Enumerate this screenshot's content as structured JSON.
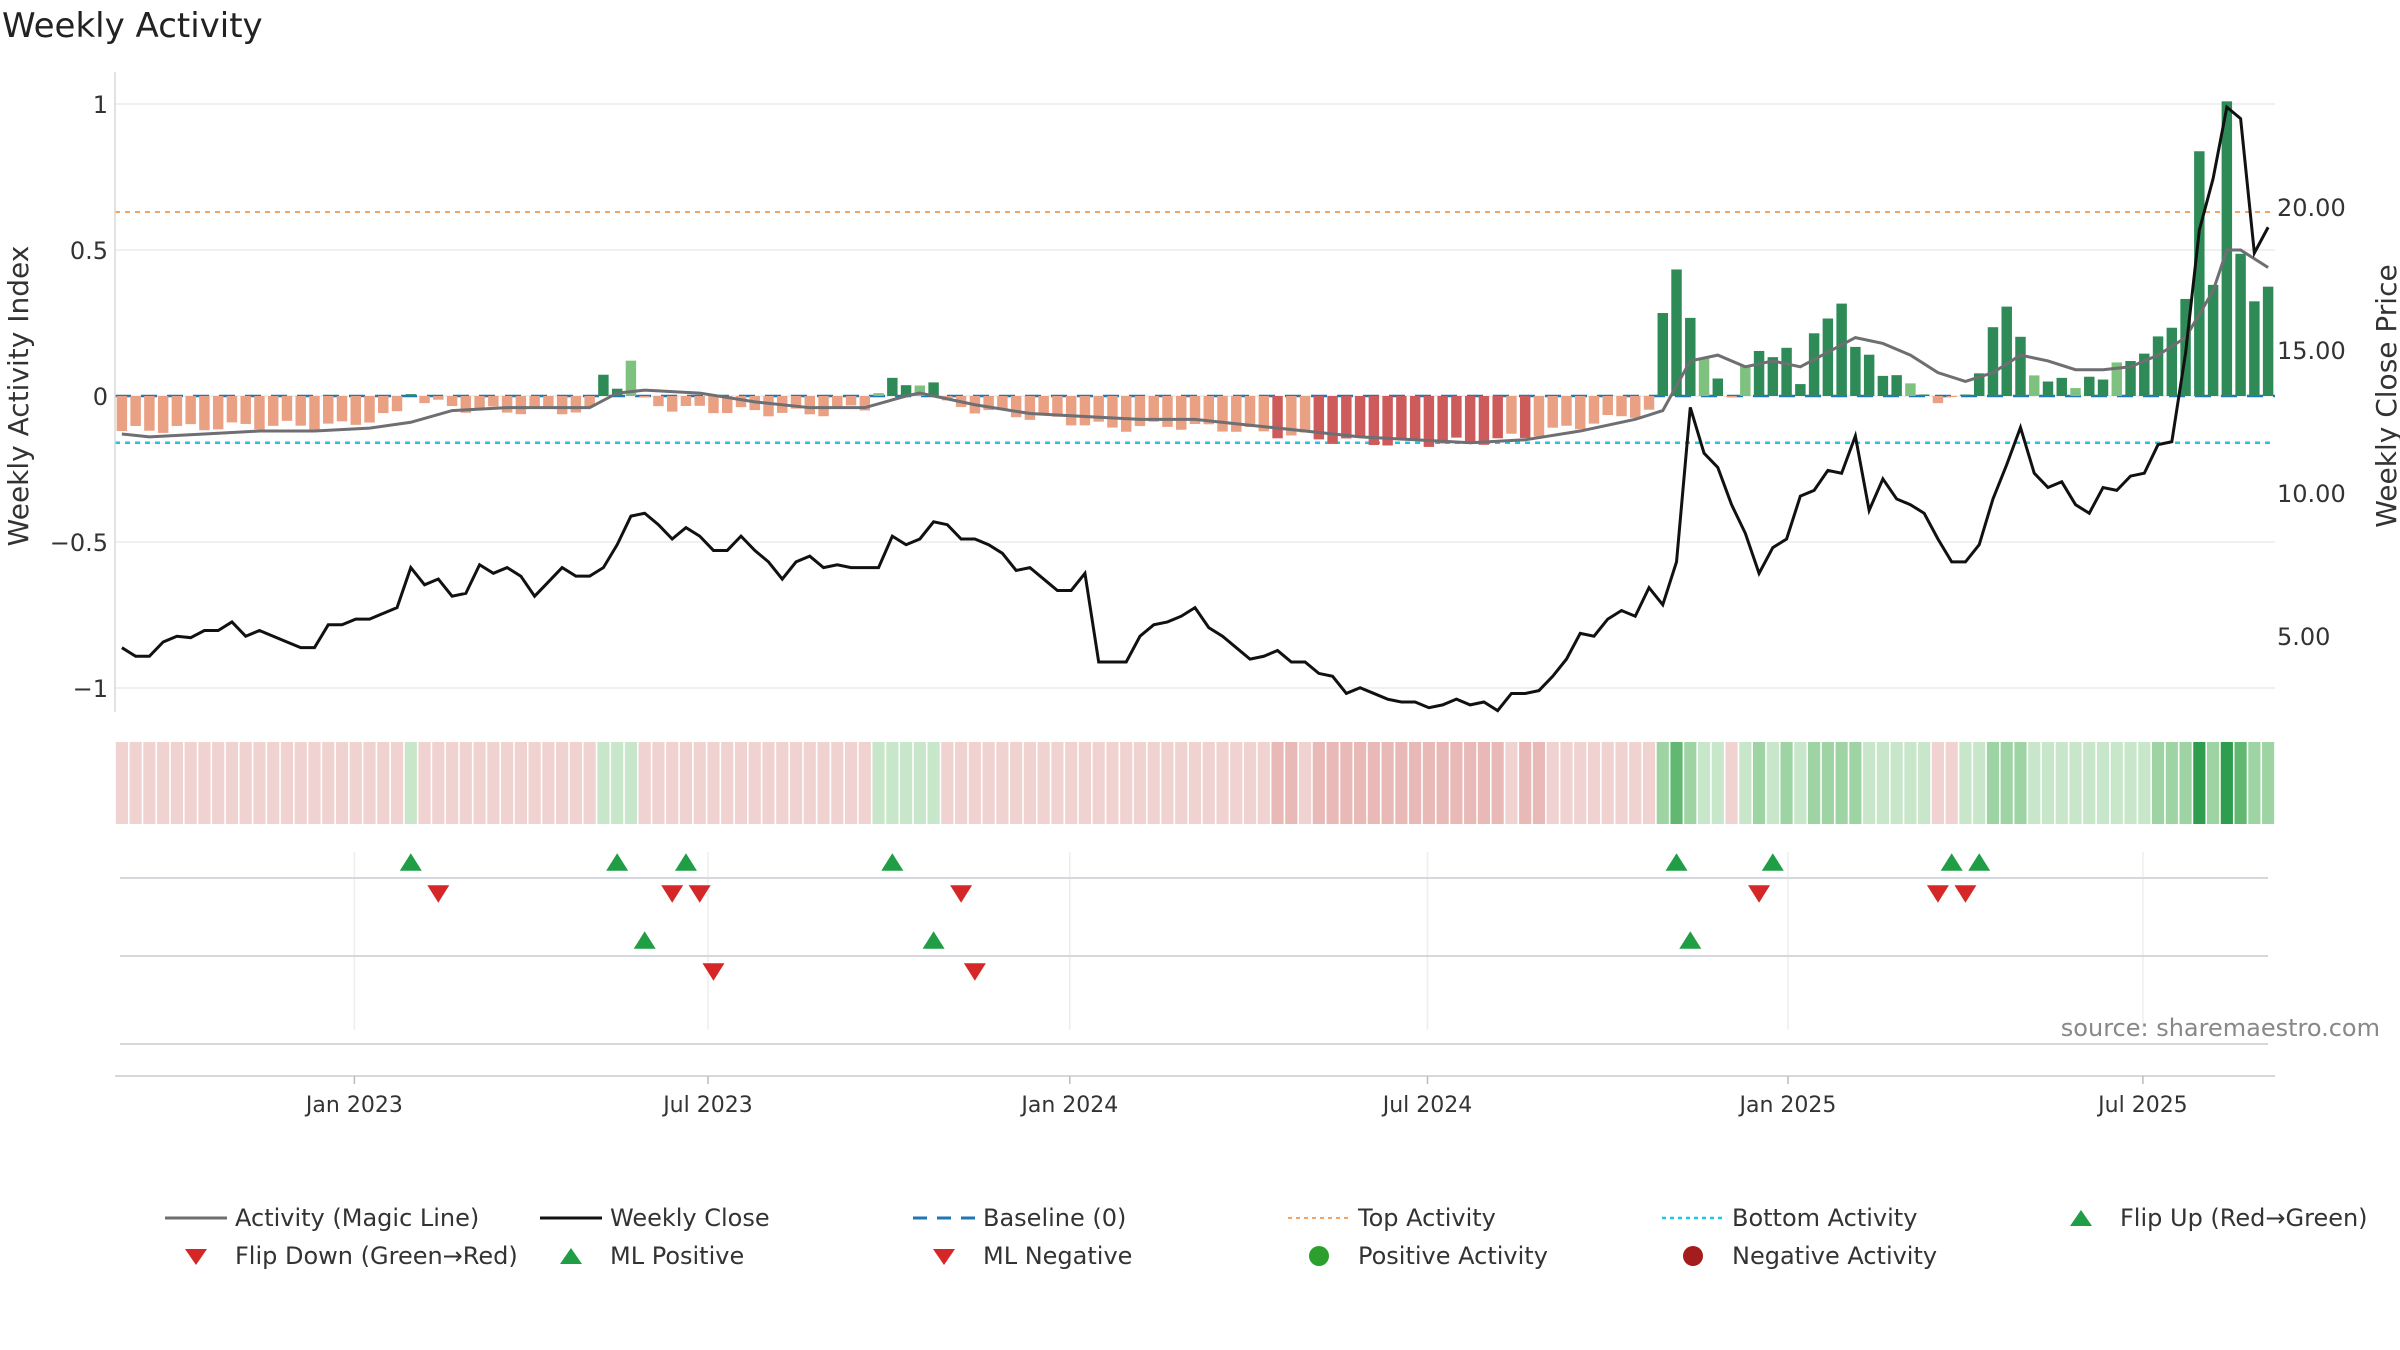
{
  "title": "Weekly Activity",
  "source": "source: sharemaestro.com",
  "colors": {
    "pos_dark": "#2e8b57",
    "pos_light": "#7fc27f",
    "neg_dark": "#cd5b5b",
    "neg_light": "#e9a083",
    "magic": "#6e6e73",
    "close": "#111111",
    "baseline": "#1f77b4",
    "top": "#f4a460",
    "bottom": "#1fc6e0",
    "flip_up": "#1f9e45",
    "flip_down": "#d62728",
    "pos_dot": "#2ca02c",
    "neg_dot": "#a51c1c"
  },
  "chart_data": {
    "type": "bar",
    "title": "Weekly Activity",
    "ylabel": "Weekly Activity Index",
    "y2label": "Weekly Close Price",
    "ylim": [
      -1.1,
      1.05
    ],
    "y2lim": [
      2.0,
      24.8
    ],
    "yticks": [
      {
        "v": 1,
        "label": "1"
      },
      {
        "v": 0.5,
        "label": "0.5"
      },
      {
        "v": 0,
        "label": "0"
      },
      {
        "v": -0.5,
        "label": "−0.5"
      },
      {
        "v": -1,
        "label": "−1"
      }
    ],
    "y2ticks": [
      {
        "v": 20,
        "label": "20.00"
      },
      {
        "v": 15,
        "label": "15.00"
      },
      {
        "v": 10,
        "label": "10.00"
      },
      {
        "v": 5,
        "label": "5.00"
      }
    ],
    "x_start": "2022-09-12",
    "week_count": 153,
    "xticks": [
      {
        "week": 16.9,
        "label": "Jan 2023"
      },
      {
        "week": 42.6,
        "label": "Jul 2023"
      },
      {
        "week": 68.9,
        "label": "Jan 2024"
      },
      {
        "week": 94.9,
        "label": "Jul 2024"
      },
      {
        "week": 121.1,
        "label": "Jan 2025"
      },
      {
        "week": 146.9,
        "label": "Jul 2025"
      }
    ],
    "top_activity": 0.63,
    "bottom_activity": -0.16,
    "segments": [
      {
        "w": 0,
        "v": -0.12
      },
      {
        "w": 4,
        "v": -0.11
      },
      {
        "w": 10,
        "v": -0.1
      },
      {
        "w": 16,
        "v": -0.1
      },
      {
        "w": 20,
        "v": -0.06
      },
      {
        "w": 21,
        "v": 0.02
      },
      {
        "w": 22,
        "v": -0.02
      },
      {
        "w": 26,
        "v": -0.05
      },
      {
        "w": 30,
        "v": -0.05
      },
      {
        "w": 34,
        "v": -0.05
      },
      {
        "w": 35,
        "v": 0.07
      },
      {
        "w": 36,
        "v": 0.04
      },
      {
        "w": 37,
        "v": 0.12
      },
      {
        "w": 38,
        "v": -0.02
      },
      {
        "w": 40,
        "v": -0.04
      },
      {
        "w": 44,
        "v": -0.05
      },
      {
        "w": 50,
        "v": -0.06
      },
      {
        "w": 54,
        "v": -0.04
      },
      {
        "w": 55,
        "v": 0.02
      },
      {
        "w": 56,
        "v": 0.05
      },
      {
        "w": 57,
        "v": 0.03
      },
      {
        "w": 58,
        "v": 0.05
      },
      {
        "w": 60,
        "v": -0.03
      },
      {
        "w": 64,
        "v": -0.06
      },
      {
        "w": 68,
        "v": -0.08
      },
      {
        "w": 72,
        "v": -0.11
      },
      {
        "w": 76,
        "v": -0.1
      },
      {
        "w": 80,
        "v": -0.11
      },
      {
        "w": 84,
        "v": -0.13
      },
      {
        "w": 88,
        "v": -0.15
      },
      {
        "w": 92,
        "v": -0.16
      },
      {
        "w": 96,
        "v": -0.16
      },
      {
        "w": 100,
        "v": -0.15
      },
      {
        "w": 104,
        "v": -0.12
      },
      {
        "w": 108,
        "v": -0.08
      },
      {
        "w": 111,
        "v": -0.05
      },
      {
        "w": 112,
        "v": 0.27
      },
      {
        "w": 113,
        "v": 0.44
      },
      {
        "w": 114,
        "v": 0.28
      },
      {
        "w": 115,
        "v": 0.12
      },
      {
        "w": 116,
        "v": 0.05
      },
      {
        "w": 117,
        "v": 0.01
      },
      {
        "w": 118,
        "v": 0.11
      },
      {
        "w": 119,
        "v": 0.14
      },
      {
        "w": 120,
        "v": 0.13
      },
      {
        "w": 121,
        "v": 0.18
      },
      {
        "w": 122,
        "v": 0.04
      },
      {
        "w": 123,
        "v": 0.2
      },
      {
        "w": 124,
        "v": 0.27
      },
      {
        "w": 125,
        "v": 0.33
      },
      {
        "w": 126,
        "v": 0.16
      },
      {
        "w": 127,
        "v": 0.13
      },
      {
        "w": 128,
        "v": 0.08
      },
      {
        "w": 129,
        "v": 0.08
      },
      {
        "w": 130,
        "v": 0.03
      },
      {
        "w": 131,
        "v": 0.0
      },
      {
        "w": 132,
        "v": -0.01
      },
      {
        "w": 133,
        "v": 0.0
      },
      {
        "w": 134,
        "v": -0.01
      },
      {
        "w": 135,
        "v": 0.08
      },
      {
        "w": 136,
        "v": 0.25
      },
      {
        "w": 137,
        "v": 0.3
      },
      {
        "w": 138,
        "v": 0.19
      },
      {
        "w": 139,
        "v": 0.08
      },
      {
        "w": 140,
        "v": 0.06
      },
      {
        "w": 141,
        "v": 0.05
      },
      {
        "w": 142,
        "v": 0.02
      },
      {
        "w": 143,
        "v": 0.08
      },
      {
        "w": 144,
        "v": 0.06
      },
      {
        "w": 145,
        "v": 0.1
      },
      {
        "w": 146,
        "v": 0.12
      },
      {
        "w": 147,
        "v": 0.16
      },
      {
        "w": 148,
        "v": 0.2
      },
      {
        "w": 149,
        "v": 0.22
      },
      {
        "w": 150,
        "v": 0.34
      },
      {
        "w": 151,
        "v": 0.85
      },
      {
        "w": 152,
        "v": 0.37
      },
      {
        "w": 153,
        "v": 1.0
      },
      {
        "w": 154,
        "v": 0.5
      },
      {
        "w": 155,
        "v": 0.33
      },
      {
        "w": 156,
        "v": 0.36
      }
    ],
    "magic_line": [
      [
        0,
        -0.13
      ],
      [
        2,
        -0.14
      ],
      [
        6,
        -0.13
      ],
      [
        10,
        -0.12
      ],
      [
        14,
        -0.12
      ],
      [
        18,
        -0.11
      ],
      [
        21,
        -0.09
      ],
      [
        24,
        -0.05
      ],
      [
        28,
        -0.04
      ],
      [
        34,
        -0.04
      ],
      [
        36,
        0.01
      ],
      [
        38,
        0.02
      ],
      [
        42,
        0.01
      ],
      [
        46,
        -0.02
      ],
      [
        50,
        -0.04
      ],
      [
        54,
        -0.04
      ],
      [
        57,
        0.0
      ],
      [
        58,
        0.01
      ],
      [
        62,
        -0.03
      ],
      [
        66,
        -0.06
      ],
      [
        70,
        -0.07
      ],
      [
        74,
        -0.08
      ],
      [
        78,
        -0.08
      ],
      [
        82,
        -0.1
      ],
      [
        86,
        -0.12
      ],
      [
        90,
        -0.14
      ],
      [
        94,
        -0.15
      ],
      [
        98,
        -0.16
      ],
      [
        102,
        -0.15
      ],
      [
        106,
        -0.12
      ],
      [
        110,
        -0.08
      ],
      [
        112,
        -0.05
      ],
      [
        114,
        0.12
      ],
      [
        116,
        0.14
      ],
      [
        118,
        0.1
      ],
      [
        120,
        0.12
      ],
      [
        122,
        0.1
      ],
      [
        124,
        0.15
      ],
      [
        126,
        0.2
      ],
      [
        128,
        0.18
      ],
      [
        130,
        0.14
      ],
      [
        132,
        0.08
      ],
      [
        134,
        0.05
      ],
      [
        136,
        0.08
      ],
      [
        138,
        0.14
      ],
      [
        140,
        0.12
      ],
      [
        142,
        0.09
      ],
      [
        144,
        0.09
      ],
      [
        146,
        0.1
      ],
      [
        148,
        0.14
      ],
      [
        150,
        0.2
      ],
      [
        152,
        0.36
      ],
      [
        153,
        0.5
      ],
      [
        154,
        0.5
      ],
      [
        156,
        0.44
      ]
    ],
    "weekly_close": [
      [
        0,
        4.6
      ],
      [
        1,
        4.3
      ],
      [
        2,
        4.3
      ],
      [
        3,
        4.8
      ],
      [
        4,
        5.0
      ],
      [
        5,
        4.95
      ],
      [
        6,
        5.2
      ],
      [
        7,
        5.2
      ],
      [
        8,
        5.5
      ],
      [
        9,
        5.0
      ],
      [
        10,
        5.2
      ],
      [
        11,
        5.0
      ],
      [
        12,
        4.8
      ],
      [
        13,
        4.6
      ],
      [
        14,
        4.6
      ],
      [
        15,
        5.4
      ],
      [
        16,
        5.4
      ],
      [
        17,
        5.6
      ],
      [
        18,
        5.6
      ],
      [
        19,
        5.8
      ],
      [
        20,
        6.0
      ],
      [
        21,
        7.4
      ],
      [
        22,
        6.8
      ],
      [
        23,
        7.0
      ],
      [
        24,
        6.4
      ],
      [
        25,
        6.5
      ],
      [
        26,
        7.5
      ],
      [
        27,
        7.2
      ],
      [
        28,
        7.4
      ],
      [
        29,
        7.1
      ],
      [
        30,
        6.4
      ],
      [
        31,
        6.9
      ],
      [
        32,
        7.4
      ],
      [
        33,
        7.1
      ],
      [
        34,
        7.1
      ],
      [
        35,
        7.4
      ],
      [
        36,
        8.2
      ],
      [
        37,
        9.2
      ],
      [
        38,
        9.3
      ],
      [
        39,
        8.9
      ],
      [
        40,
        8.4
      ],
      [
        41,
        8.8
      ],
      [
        42,
        8.5
      ],
      [
        43,
        8.0
      ],
      [
        44,
        8.0
      ],
      [
        45,
        8.5
      ],
      [
        46,
        8.0
      ],
      [
        47,
        7.6
      ],
      [
        48,
        7.0
      ],
      [
        49,
        7.6
      ],
      [
        50,
        7.8
      ],
      [
        51,
        7.4
      ],
      [
        52,
        7.5
      ],
      [
        53,
        7.4
      ],
      [
        54,
        7.4
      ],
      [
        55,
        7.4
      ],
      [
        56,
        8.5
      ],
      [
        57,
        8.2
      ],
      [
        58,
        8.4
      ],
      [
        59,
        9.0
      ],
      [
        60,
        8.9
      ],
      [
        61,
        8.4
      ],
      [
        62,
        8.4
      ],
      [
        63,
        8.2
      ],
      [
        64,
        7.9
      ],
      [
        65,
        7.3
      ],
      [
        66,
        7.4
      ],
      [
        67,
        7.0
      ],
      [
        68,
        6.6
      ],
      [
        69,
        6.6
      ],
      [
        70,
        7.2
      ],
      [
        71,
        4.1
      ],
      [
        72,
        4.1
      ],
      [
        73,
        4.1
      ],
      [
        74,
        5.0
      ],
      [
        75,
        5.4
      ],
      [
        76,
        5.5
      ],
      [
        77,
        5.7
      ],
      [
        78,
        6.0
      ],
      [
        79,
        5.3
      ],
      [
        80,
        5.0
      ],
      [
        81,
        4.6
      ],
      [
        82,
        4.2
      ],
      [
        83,
        4.3
      ],
      [
        84,
        4.5
      ],
      [
        85,
        4.1
      ],
      [
        86,
        4.1
      ],
      [
        87,
        3.7
      ],
      [
        88,
        3.6
      ],
      [
        89,
        3.0
      ],
      [
        90,
        3.2
      ],
      [
        91,
        3.0
      ],
      [
        92,
        2.8
      ],
      [
        93,
        2.7
      ],
      [
        94,
        2.7
      ],
      [
        95,
        2.5
      ],
      [
        96,
        2.6
      ],
      [
        97,
        2.8
      ],
      [
        98,
        2.6
      ],
      [
        99,
        2.7
      ],
      [
        100,
        2.4
      ],
      [
        101,
        3.0
      ],
      [
        102,
        3.0
      ],
      [
        103,
        3.1
      ],
      [
        104,
        3.6
      ],
      [
        105,
        4.2
      ],
      [
        106,
        5.1
      ],
      [
        107,
        5.0
      ],
      [
        108,
        5.6
      ],
      [
        109,
        5.9
      ],
      [
        110,
        5.7
      ],
      [
        111,
        6.7
      ],
      [
        112,
        6.1
      ],
      [
        113,
        7.6
      ],
      [
        114,
        13.0
      ],
      [
        115,
        11.4
      ],
      [
        116,
        10.9
      ],
      [
        117,
        9.6
      ],
      [
        118,
        8.6
      ],
      [
        119,
        7.2
      ],
      [
        120,
        8.1
      ],
      [
        121,
        8.4
      ],
      [
        122,
        9.9
      ],
      [
        123,
        10.1
      ],
      [
        124,
        10.8
      ],
      [
        125,
        10.7
      ],
      [
        126,
        12.0
      ],
      [
        127,
        9.4
      ],
      [
        128,
        10.5
      ],
      [
        129,
        9.8
      ],
      [
        130,
        9.6
      ],
      [
        131,
        9.3
      ],
      [
        132,
        8.4
      ],
      [
        133,
        7.6
      ],
      [
        134,
        7.6
      ],
      [
        135,
        8.2
      ],
      [
        136,
        9.8
      ],
      [
        137,
        11.0
      ],
      [
        138,
        12.3
      ],
      [
        139,
        10.7
      ],
      [
        140,
        10.2
      ],
      [
        141,
        10.4
      ],
      [
        142,
        9.6
      ],
      [
        143,
        9.3
      ],
      [
        144,
        10.2
      ],
      [
        145,
        10.1
      ],
      [
        146,
        10.6
      ],
      [
        147,
        10.7
      ],
      [
        148,
        11.7
      ],
      [
        149,
        11.8
      ],
      [
        150,
        14.9
      ],
      [
        151,
        19.2
      ],
      [
        152,
        21.0
      ],
      [
        153,
        23.5
      ],
      [
        154,
        23.1
      ],
      [
        155,
        18.4
      ],
      [
        156,
        19.3
      ]
    ],
    "flips_row1": [
      {
        "w": 21,
        "dir": "up"
      },
      {
        "w": 23,
        "dir": "down"
      },
      {
        "w": 36,
        "dir": "up"
      },
      {
        "w": 40,
        "dir": "down"
      },
      {
        "w": 41,
        "dir": "up"
      },
      {
        "w": 42,
        "dir": "down"
      },
      {
        "w": 56,
        "dir": "up"
      },
      {
        "w": 61,
        "dir": "down"
      },
      {
        "w": 113,
        "dir": "up"
      },
      {
        "w": 119,
        "dir": "down"
      },
      {
        "w": 120,
        "dir": "up"
      },
      {
        "w": 132,
        "dir": "down"
      },
      {
        "w": 133,
        "dir": "up"
      },
      {
        "w": 134,
        "dir": "down"
      },
      {
        "w": 135,
        "dir": "up"
      }
    ],
    "flips_row2": [
      {
        "w": 38,
        "dir": "up"
      },
      {
        "w": 43,
        "dir": "down"
      },
      {
        "w": 59,
        "dir": "up"
      },
      {
        "w": 62,
        "dir": "down"
      },
      {
        "w": 114,
        "dir": "up"
      }
    ]
  },
  "legend": [
    {
      "kind": "line-solid-gray",
      "label": "Activity (Magic Line)"
    },
    {
      "kind": "line-solid-black",
      "label": "Weekly Close"
    },
    {
      "kind": "line-dash-blue",
      "label": "Baseline (0)"
    },
    {
      "kind": "line-dot-orange",
      "label": "Top Activity"
    },
    {
      "kind": "line-dot-cyan",
      "label": "Bottom Activity"
    },
    {
      "kind": "tri-up-green",
      "label": "Flip Up (Red→Green)"
    },
    {
      "kind": "tri-down-red",
      "label": "Flip Down (Green→Red)"
    },
    {
      "kind": "tri-up-green",
      "label": "ML Positive"
    },
    {
      "kind": "tri-down-red",
      "label": "ML Negative"
    },
    {
      "kind": "dot-green",
      "label": "Positive Activity"
    },
    {
      "kind": "dot-red",
      "label": "Negative Activity"
    }
  ]
}
